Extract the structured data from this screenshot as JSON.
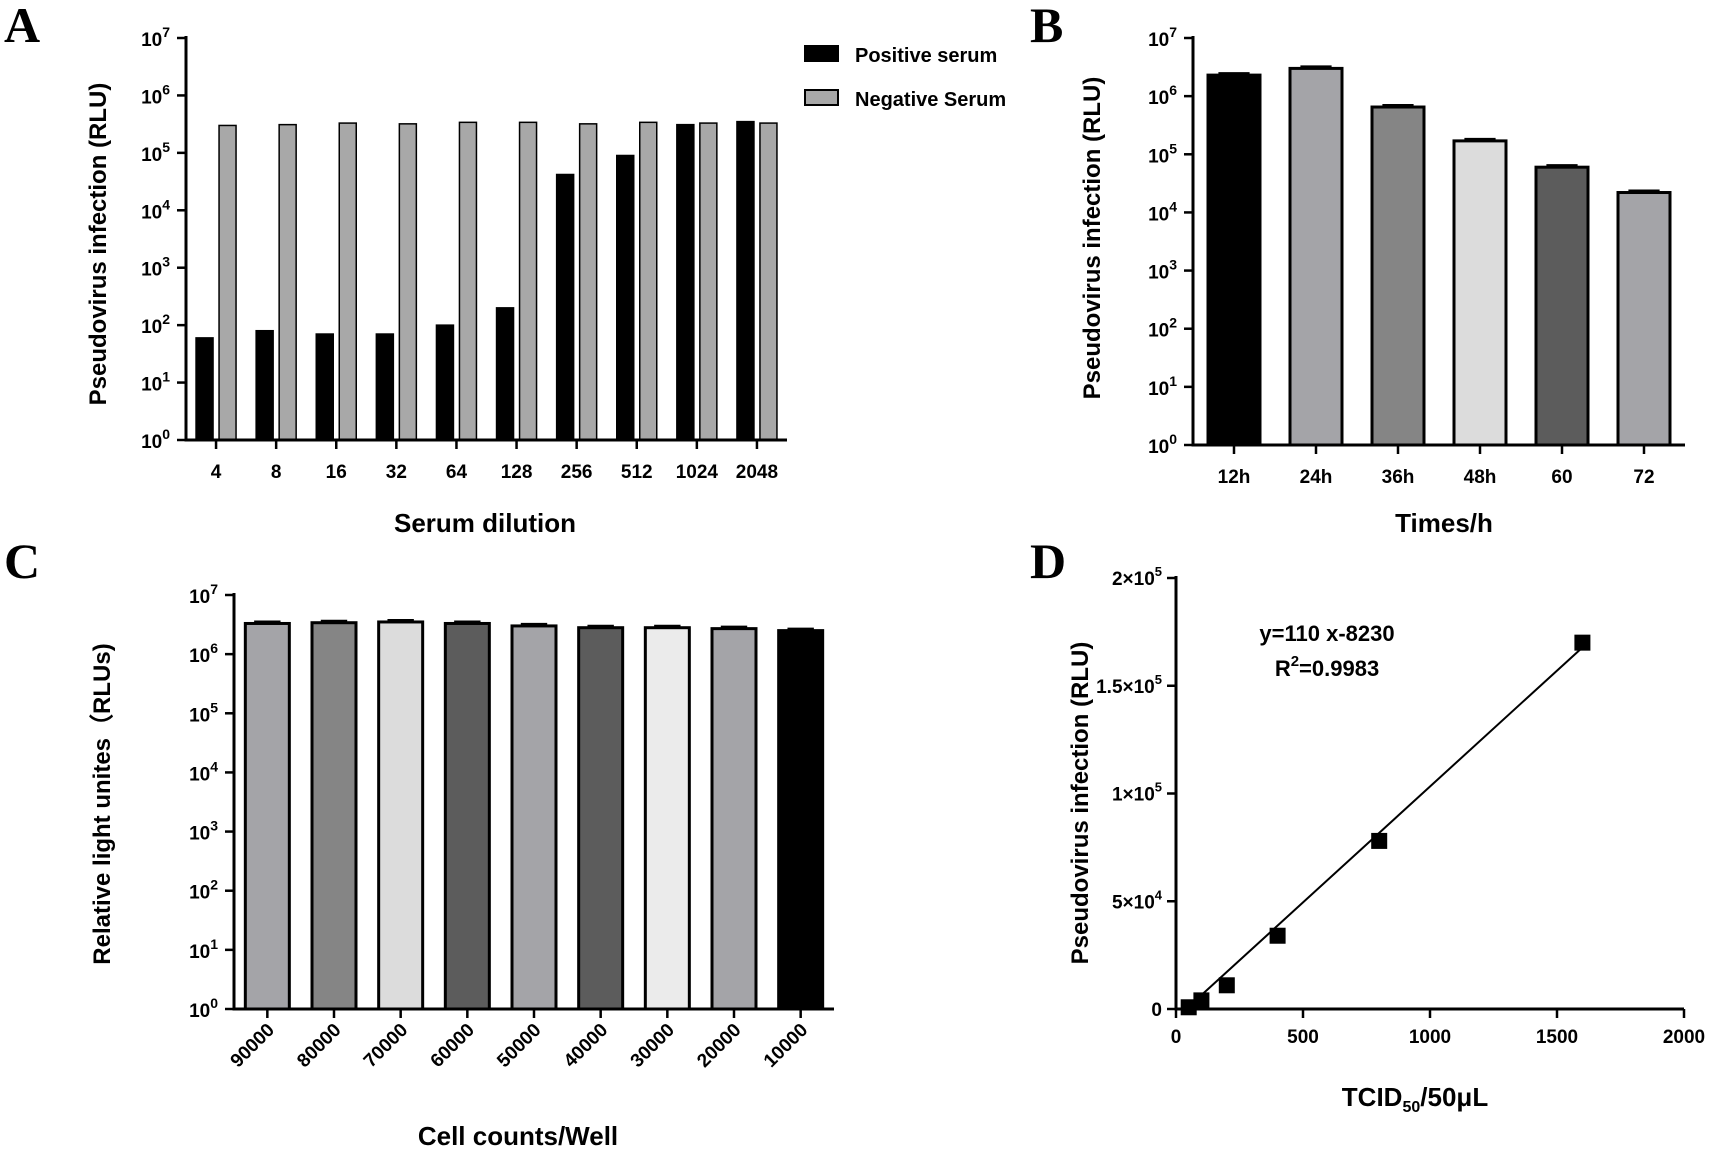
{
  "chart_data": [
    {
      "panel": "A",
      "type": "bar",
      "title": "",
      "xlabel": "Serum dilution",
      "ylabel": "Pseudovirus infection (RLU)",
      "yscale": "log",
      "ylim": [
        1,
        10000000
      ],
      "ytick_exponents": [
        "0",
        "1",
        "2",
        "3",
        "4",
        "5",
        "6",
        "7"
      ],
      "categories": [
        "4",
        "8",
        "16",
        "32",
        "64",
        "128",
        "256",
        "512",
        "1024",
        "2048"
      ],
      "legend_position": "top-right",
      "series": [
        {
          "name": "Positive serum",
          "color": "#000000",
          "values": [
            60,
            80,
            70,
            70,
            100,
            200,
            42000,
            90000,
            310000,
            350000
          ]
        },
        {
          "name": "Negative Serum",
          "color": "#a8a8a8",
          "values": [
            300000,
            310000,
            330000,
            320000,
            340000,
            340000,
            320000,
            340000,
            330000,
            330000
          ]
        }
      ]
    },
    {
      "panel": "B",
      "type": "bar",
      "title": "",
      "xlabel": "Times/h",
      "ylabel": "Pseudovirus infection (RLU)",
      "yscale": "log",
      "ylim": [
        1,
        10000000
      ],
      "ytick_exponents": [
        "0",
        "1",
        "2",
        "3",
        "4",
        "5",
        "6",
        "7"
      ],
      "categories": [
        "12h",
        "24h",
        "36h",
        "48h",
        "60",
        "72"
      ],
      "colors": [
        "#000000",
        "#a4a4a8",
        "#858585",
        "#dcdcdc",
        "#5c5c5c",
        "#a4a4a8"
      ],
      "values": [
        2300000,
        3000000,
        650000,
        170000,
        60000,
        22000
      ]
    },
    {
      "panel": "C",
      "type": "bar",
      "title": "",
      "xlabel": "Cell counts/Well",
      "ylabel": "Relative light unites（RLUs)",
      "yscale": "log",
      "ylim": [
        1,
        10000000
      ],
      "ytick_exponents": [
        "0",
        "1",
        "2",
        "3",
        "4",
        "5",
        "6",
        "7"
      ],
      "categories": [
        "90000",
        "80000",
        "70000",
        "60000",
        "50000",
        "40000",
        "30000",
        "20000",
        "10000"
      ],
      "colors": [
        "#a4a4a8",
        "#858585",
        "#dcdcdc",
        "#5c5c5c",
        "#a4a4a8",
        "#5c5c5c",
        "#ebebeb",
        "#a4a4a8",
        "#000000"
      ],
      "values": [
        3300000,
        3400000,
        3500000,
        3300000,
        3000000,
        2800000,
        2800000,
        2700000,
        2500000
      ]
    },
    {
      "panel": "D",
      "type": "scatter",
      "title": "",
      "xlabel_main": "TCID",
      "xlabel_sub": "50",
      "xlabel_rest": "/50μL",
      "ylabel": "Pseudovirus infection (RLU)",
      "xlim": [
        0,
        2000
      ],
      "ylim": [
        0,
        200000
      ],
      "xticks": [
        "0",
        "500",
        "1000",
        "1500",
        "2000"
      ],
      "yticks": [
        {
          "value": 0,
          "mant": "0",
          "exp": ""
        },
        {
          "value": 50000,
          "mant": "5×10",
          "exp": "4"
        },
        {
          "value": 100000,
          "mant": "1×10",
          "exp": "5"
        },
        {
          "value": 150000,
          "mant": "1.5×10",
          "exp": "5"
        },
        {
          "value": 200000,
          "mant": "2×10",
          "exp": "5"
        }
      ],
      "points": [
        {
          "x": 50,
          "y": 800
        },
        {
          "x": 100,
          "y": 4000
        },
        {
          "x": 200,
          "y": 11000
        },
        {
          "x": 400,
          "y": 34000
        },
        {
          "x": 800,
          "y": 78000
        },
        {
          "x": 1600,
          "y": 170000
        }
      ],
      "fit_line": {
        "slope": 110,
        "intercept": -8230,
        "x_from": 40,
        "x_to": 1600
      },
      "equation": "y=110 x-8230",
      "r2_label": "R",
      "r2_exp": "2",
      "r2_value": "=0.9983"
    }
  ]
}
